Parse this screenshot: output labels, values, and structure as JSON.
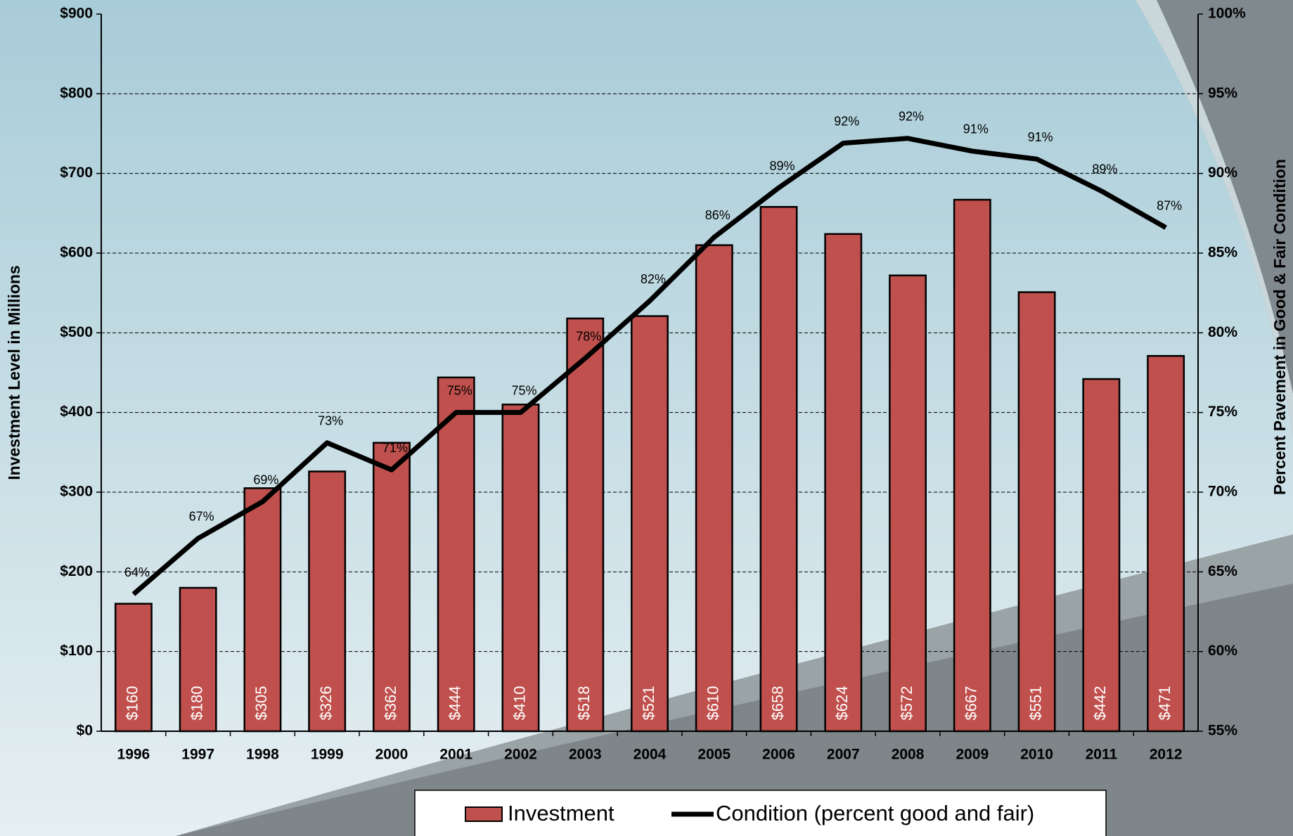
{
  "chart_data": {
    "type": "bar",
    "categories": [
      "1996",
      "1997",
      "1998",
      "1999",
      "2000",
      "2001",
      "2002",
      "2003",
      "2004",
      "2005",
      "2006",
      "2007",
      "2008",
      "2009",
      "2010",
      "2011",
      "2012"
    ],
    "series": [
      {
        "name": "Investment",
        "type": "bar",
        "color": "#c0504d",
        "values": [
          160,
          180,
          305,
          326,
          362,
          444,
          410,
          518,
          521,
          610,
          658,
          624,
          572,
          667,
          551,
          442,
          471
        ],
        "value_labels": [
          "$160",
          "$180",
          "$305",
          "$326",
          "$362",
          "$444",
          "$410",
          "$518",
          "$521",
          "$610",
          "$658",
          "$624",
          "$572",
          "$667",
          "$551",
          "$442",
          "$471"
        ]
      },
      {
        "name": "Condition (percent good and fair)",
        "type": "line",
        "color": "#000000",
        "axis": "y2",
        "values": [
          63.6,
          67.1,
          69.4,
          73.1,
          71.4,
          75,
          75,
          78.4,
          82,
          86,
          89.1,
          91.9,
          92.2,
          91.4,
          90.9,
          88.9,
          86.6
        ],
        "value_labels": [
          "64%",
          "67%",
          "69%",
          "73%",
          "71%",
          "75%",
          "75%",
          "78%",
          "82%",
          "86%",
          "89%",
          "92%",
          "92%",
          "91%",
          "91%",
          "89%",
          "87%"
        ]
      }
    ],
    "ylabel": "Investment  Level  in Millions",
    "y2label": "Percent  Pavement  in Good & Fair Condition",
    "ylim": [
      0,
      900
    ],
    "yticks": [
      {
        "value": 0,
        "label": "$0"
      },
      {
        "value": 100,
        "label": "$100"
      },
      {
        "value": 200,
        "label": "$200"
      },
      {
        "value": 300,
        "label": "$300"
      },
      {
        "value": 400,
        "label": "$400"
      },
      {
        "value": 500,
        "label": "$500"
      },
      {
        "value": 600,
        "label": "$600"
      },
      {
        "value": 700,
        "label": "$700"
      },
      {
        "value": 800,
        "label": "$800"
      },
      {
        "value": 900,
        "label": "$900"
      }
    ],
    "y2lim": [
      55,
      100
    ],
    "y2ticks": [
      {
        "value": 55,
        "label": "55%"
      },
      {
        "value": 60,
        "label": "60%"
      },
      {
        "value": 65,
        "label": "65%"
      },
      {
        "value": 70,
        "label": "70%"
      },
      {
        "value": 75,
        "label": "75%"
      },
      {
        "value": 80,
        "label": "80%"
      },
      {
        "value": 85,
        "label": "85%"
      },
      {
        "value": 90,
        "label": "90%"
      },
      {
        "value": 95,
        "label": "95%"
      },
      {
        "value": 100,
        "label": "100%"
      }
    ],
    "grid": true,
    "legend": "bottom"
  }
}
